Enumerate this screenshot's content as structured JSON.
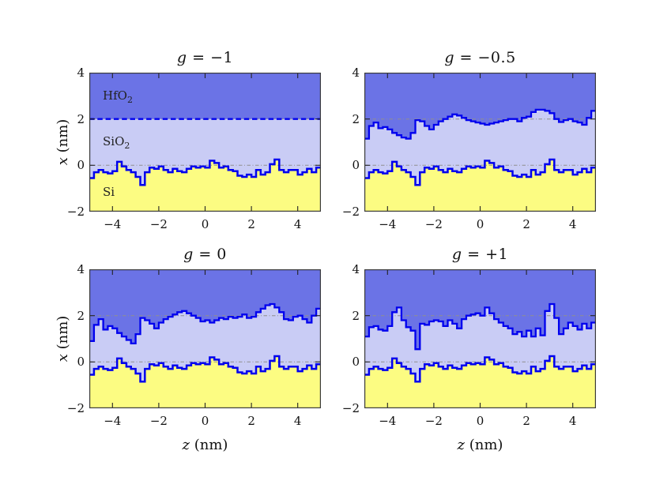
{
  "figure": {
    "background": "#ffffff"
  },
  "chart_data": {
    "type": "area",
    "layout": "2x2 panels",
    "title": "",
    "xlabel_var": "z",
    "xlabel_rest": " (nm)",
    "ylabel_var": "x",
    "ylabel_rest": " (nm)",
    "xlim": [
      -5,
      5
    ],
    "ylim": [
      -2,
      4
    ],
    "x_ticks": [
      -4,
      -2,
      0,
      2,
      4
    ],
    "x_tick_labels": [
      "−4",
      "−2",
      "0",
      "2",
      "4"
    ],
    "y_ticks": [
      4,
      2,
      0,
      -2
    ],
    "y_tick_labels": [
      "4",
      "2",
      "0",
      "−2"
    ],
    "side_tick_values": [
      2,
      0
    ],
    "ref_lines": [
      2,
      0
    ],
    "grid": false,
    "z_start": -5,
    "z_step": 0.2,
    "layers": [
      {
        "name": "HfO2",
        "main": "HfO",
        "sub": "2",
        "color": "#6b73e6"
      },
      {
        "name": "SiO2",
        "main": "SiO",
        "sub": "2",
        "color": "#c9ccf5"
      },
      {
        "name": "Si",
        "main": "Si",
        "sub": "",
        "color": "#fcfc82"
      }
    ],
    "colors": {
      "interface_line": "#0000ee",
      "ref_line": "#8f8f8f",
      "frame": "#3c3c3c",
      "tick": "#222222",
      "text": "#111111"
    },
    "panels": [
      {
        "name": "g-minus-1",
        "title_var": "g",
        "title_rest": " = −1",
        "upper": "flat",
        "upper_value": 2,
        "upper_line": "dashed",
        "show_layer_labels": true,
        "show_ylabel": true,
        "show_xlabel": false
      },
      {
        "name": "g-minus-0-5",
        "title_var": "g",
        "title_rest": " = −0.5",
        "upper": "series",
        "upper_key": "upper_g_minus_05",
        "upper_line": "solid",
        "show_layer_labels": false,
        "show_ylabel": false,
        "show_xlabel": false
      },
      {
        "name": "g-zero",
        "title_var": "g",
        "title_rest": " = 0",
        "upper": "series",
        "upper_key": "upper_g_0",
        "upper_line": "solid",
        "show_layer_labels": false,
        "show_ylabel": true,
        "show_xlabel": true
      },
      {
        "name": "g-plus-1",
        "title_var": "g",
        "title_rest": " = +1",
        "upper": "series",
        "upper_key": "upper_g_plus_1",
        "upper_line": "solid",
        "show_layer_labels": false,
        "show_ylabel": false,
        "show_xlabel": true
      }
    ],
    "series": {
      "si_surface": [
        -0.55,
        -0.3,
        -0.2,
        -0.3,
        -0.35,
        -0.25,
        0.15,
        -0.05,
        -0.2,
        -0.3,
        -0.5,
        -0.85,
        -0.3,
        -0.1,
        -0.15,
        -0.05,
        -0.2,
        -0.3,
        -0.15,
        -0.25,
        -0.3,
        -0.15,
        -0.05,
        -0.1,
        -0.05,
        -0.1,
        0.2,
        0.1,
        -0.1,
        -0.05,
        -0.2,
        -0.25,
        -0.45,
        -0.5,
        -0.4,
        -0.5,
        -0.2,
        -0.4,
        -0.3,
        0.05,
        0.25,
        -0.2,
        -0.3,
        -0.2,
        -0.2,
        -0.4,
        -0.3,
        -0.15,
        -0.3,
        -0.1
      ],
      "upper_g_minus_05": [
        1.15,
        1.7,
        1.85,
        1.6,
        1.65,
        1.55,
        1.4,
        1.3,
        1.2,
        1.15,
        1.4,
        1.95,
        1.9,
        1.7,
        1.55,
        1.75,
        1.9,
        2.0,
        2.1,
        2.2,
        2.15,
        2.05,
        1.95,
        1.9,
        1.85,
        1.8,
        1.75,
        1.8,
        1.85,
        1.9,
        1.95,
        2.0,
        2.0,
        1.9,
        2.05,
        2.1,
        2.3,
        2.4,
        2.4,
        2.35,
        2.25,
        2.0,
        1.87,
        1.95,
        2.0,
        1.9,
        1.85,
        1.75,
        2.05,
        2.35
      ],
      "upper_g_0": [
        0.9,
        1.6,
        1.85,
        1.4,
        1.55,
        1.45,
        1.25,
        1.1,
        0.95,
        0.8,
        1.2,
        1.9,
        1.8,
        1.65,
        1.45,
        1.7,
        1.85,
        1.95,
        2.05,
        2.15,
        2.2,
        2.1,
        2.0,
        1.9,
        1.75,
        1.8,
        1.7,
        1.8,
        1.9,
        1.85,
        1.95,
        1.9,
        1.95,
        2.05,
        1.9,
        1.95,
        2.15,
        2.3,
        2.45,
        2.5,
        2.35,
        2.15,
        1.85,
        1.8,
        1.95,
        2.0,
        1.85,
        1.7,
        2.0,
        2.3
      ],
      "upper_g_plus_1": [
        1.1,
        1.5,
        1.55,
        1.4,
        1.35,
        1.55,
        2.15,
        2.35,
        1.8,
        1.5,
        1.35,
        0.55,
        1.65,
        1.6,
        1.75,
        1.8,
        1.75,
        1.55,
        1.8,
        1.65,
        1.45,
        1.85,
        2.0,
        2.05,
        2.1,
        2.0,
        2.35,
        2.1,
        1.85,
        1.7,
        1.55,
        1.45,
        1.2,
        1.3,
        1.1,
        1.35,
        1.1,
        1.45,
        1.15,
        2.2,
        2.5,
        1.9,
        1.2,
        1.45,
        1.7,
        1.55,
        1.4,
        1.65,
        1.45,
        1.7
      ]
    }
  }
}
